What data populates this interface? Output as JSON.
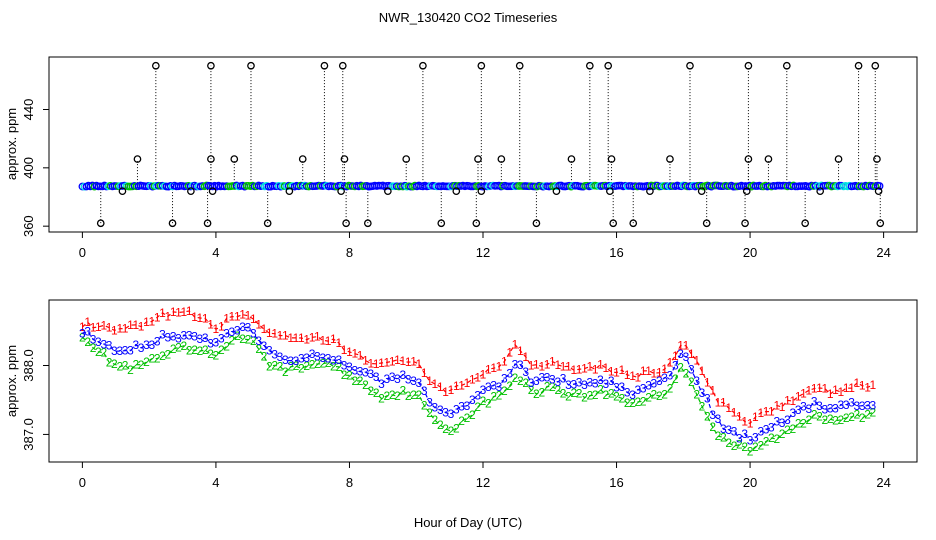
{
  "title": "NWR_130420  CO2 Timeseries",
  "xlabel": "Hour of Day (UTC)",
  "colors": {
    "axis": "#000000",
    "series1": "#ff0000",
    "series2": "#00c000",
    "series3": "#0000ff",
    "cyan": "#00e0e0"
  },
  "chart_data": [
    {
      "type": "scatter",
      "ylabel": "approx. ppm",
      "xlim": [
        -1,
        25
      ],
      "ylim": [
        356,
        476
      ],
      "xticks": [
        0,
        4,
        8,
        12,
        16,
        20,
        24
      ],
      "yticks": [
        360,
        400,
        440
      ],
      "baseline": 387.5,
      "spike_x": [
        2.2,
        3.85,
        5.05,
        7.25,
        7.8,
        10.2,
        11.95,
        13.1,
        15.2,
        15.75,
        18.2,
        19.95,
        21.1,
        23.25,
        23.75
      ],
      "spike_y": 470,
      "mid_x": [
        1.65,
        3.85,
        4.55,
        6.6,
        7.85,
        9.7,
        11.85,
        12.55,
        14.65,
        15.85,
        17.6,
        19.95,
        20.55,
        22.65,
        23.8
      ],
      "mid_y": 406,
      "low_x": [
        0.55,
        2.7,
        3.75,
        5.55,
        7.9,
        8.55,
        10.75,
        11.8,
        13.6,
        15.9,
        16.5,
        18.7,
        19.85,
        21.65,
        23.9
      ],
      "low_y": 362,
      "near_x": [
        1.2,
        3.25,
        3.9,
        6.2,
        7.75,
        9.15,
        11.2,
        11.95,
        14.2,
        15.8,
        17.0,
        18.55,
        19.9,
        22.1,
        23.85
      ],
      "near_y": 384
    },
    {
      "type": "line",
      "ylabel": "approx. ppm",
      "xlim": [
        -1,
        25
      ],
      "ylim": [
        386.6,
        388.95
      ],
      "xticks": [
        0,
        4,
        8,
        12,
        16,
        20,
        24
      ],
      "yticks": [
        387.0,
        388.0
      ],
      "ytick_labels": [
        "387.0",
        "388.0"
      ],
      "x_knots": [
        0,
        0.5,
        1,
        1.5,
        2,
        2.5,
        3,
        3.5,
        4,
        4.5,
        5,
        5.5,
        6,
        6.5,
        7,
        7.5,
        8,
        8.5,
        9,
        9.5,
        10,
        10.5,
        11,
        11.5,
        12,
        12.5,
        13,
        13.5,
        14,
        14.5,
        15,
        15.5,
        16,
        16.5,
        17,
        17.5,
        18,
        18.5,
        19,
        19.5,
        20,
        20.5,
        21,
        21.5,
        22,
        22.5,
        23,
        23.5,
        23.8
      ],
      "series3_knots": [
        388.5,
        388.35,
        388.2,
        388.25,
        388.3,
        388.45,
        388.42,
        388.4,
        388.3,
        388.5,
        388.55,
        388.25,
        388.1,
        388.05,
        388.15,
        388.1,
        388.0,
        387.9,
        387.75,
        387.85,
        387.8,
        387.4,
        387.25,
        387.45,
        387.65,
        387.7,
        388.05,
        387.75,
        387.85,
        387.75,
        387.7,
        387.8,
        387.7,
        387.6,
        387.72,
        387.8,
        388.2,
        387.7,
        387.2,
        387.0,
        386.95,
        387.1,
        387.2,
        387.35,
        387.45,
        387.35,
        387.45,
        387.4,
        387.45
      ],
      "series1_knots": [
        388.6,
        388.55,
        388.5,
        388.55,
        388.6,
        388.75,
        388.78,
        388.7,
        388.55,
        388.7,
        388.75,
        388.5,
        388.4,
        388.35,
        388.4,
        388.35,
        388.2,
        388.1,
        388.0,
        388.05,
        388.1,
        387.7,
        387.6,
        387.75,
        387.9,
        388.0,
        388.3,
        388.0,
        388.05,
        388.0,
        387.95,
        388.0,
        387.92,
        387.85,
        387.9,
        387.95,
        388.35,
        387.95,
        387.5,
        387.3,
        387.2,
        387.35,
        387.45,
        387.55,
        387.65,
        387.6,
        387.7,
        387.7,
        387.72
      ],
      "series2_knots": [
        388.45,
        388.2,
        388.0,
        387.95,
        388.05,
        388.15,
        388.25,
        388.2,
        388.15,
        388.4,
        388.4,
        388.05,
        387.95,
        387.95,
        388.05,
        388.0,
        387.85,
        387.7,
        387.55,
        387.6,
        387.6,
        387.2,
        387.05,
        387.25,
        387.45,
        387.55,
        387.85,
        387.6,
        387.7,
        387.6,
        387.55,
        387.62,
        387.55,
        387.45,
        387.55,
        387.6,
        388.0,
        387.5,
        387.0,
        386.85,
        386.75,
        386.9,
        387.0,
        387.15,
        387.3,
        387.2,
        387.3,
        387.25,
        387.3
      ]
    }
  ]
}
